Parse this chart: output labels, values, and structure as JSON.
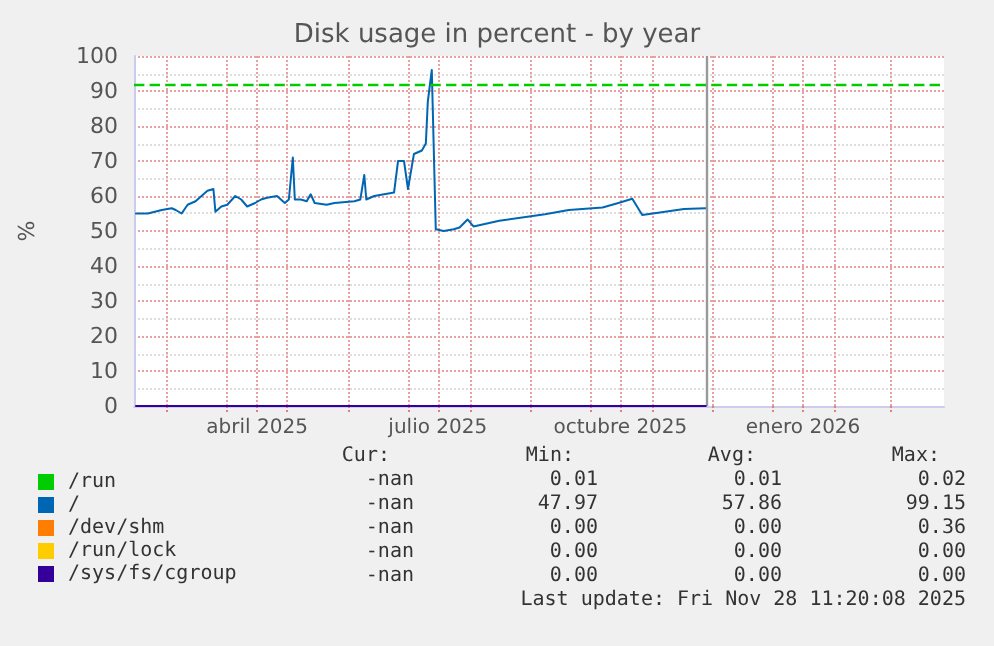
{
  "chart_data": {
    "type": "line",
    "title": "Disk usage in percent - by year",
    "ylabel": "%",
    "xlim": [
      "2025-02-13",
      "2026-03-28"
    ],
    "xticks": [
      {
        "value": "2025-03-01",
        "label": null
      },
      {
        "value": "2025-04-01",
        "label": null
      },
      {
        "value": "2025-04-16",
        "label": "abril 2025"
      },
      {
        "value": "2025-05-01",
        "label": null
      },
      {
        "value": "2025-06-01",
        "label": null
      },
      {
        "value": "2025-07-01",
        "label": null
      },
      {
        "value": "2025-07-16",
        "label": "julio 2025"
      },
      {
        "value": "2025-08-01",
        "label": null
      },
      {
        "value": "2025-09-01",
        "label": null
      },
      {
        "value": "2025-10-01",
        "label": null
      },
      {
        "value": "2025-10-16",
        "label": "octubre 2025"
      },
      {
        "value": "2025-11-01",
        "label": null
      },
      {
        "value": "2025-12-01",
        "label": null
      },
      {
        "value": "2026-01-01",
        "label": null
      },
      {
        "value": "2026-01-16",
        "label": "enero 2026"
      },
      {
        "value": "2026-02-01",
        "label": null
      },
      {
        "value": "2026-03-01",
        "label": null
      }
    ],
    "ylim": [
      0,
      100
    ],
    "yticks": [
      0,
      10,
      20,
      30,
      40,
      50,
      60,
      70,
      80,
      90,
      100
    ],
    "grid": true,
    "legend": "bottom left",
    "marker": "none",
    "line_style": "solid",
    "ref_lines": [
      {
        "axis": "y",
        "value": 92,
        "color": "#00cc00",
        "line_style": "dashed"
      },
      {
        "axis": "x",
        "value": "2025-11-28",
        "color": "#999999",
        "line_style": "solid"
      }
    ],
    "series": [
      {
        "name": "/run",
        "color": "#00cc00"
      },
      {
        "name": "/",
        "color": "#0066b3",
        "x": [
          "2025-02-14",
          "2025-02-20",
          "2025-02-27",
          "2025-03-04",
          "2025-03-06",
          "2025-03-09",
          "2025-03-12",
          "2025-03-16",
          "2025-03-19",
          "2025-03-22",
          "2025-03-25",
          "2025-03-26",
          "2025-03-29",
          "2025-04-01",
          "2025-04-05",
          "2025-04-08",
          "2025-04-11",
          "2025-04-15",
          "2025-04-18",
          "2025-04-21",
          "2025-04-26",
          "2025-04-30",
          "2025-05-02",
          "2025-05-04",
          "2025-05-05",
          "2025-05-08",
          "2025-05-11",
          "2025-05-13",
          "2025-05-15",
          "2025-05-21",
          "2025-05-25",
          "2025-06-04",
          "2025-06-07",
          "2025-06-09",
          "2025-06-10",
          "2025-06-14",
          "2025-06-19",
          "2025-06-24",
          "2025-06-26",
          "2025-06-29",
          "2025-07-01",
          "2025-07-04",
          "2025-07-08",
          "2025-07-10",
          "2025-07-11",
          "2025-07-13",
          "2025-07-15",
          "2025-07-19",
          "2025-07-24",
          "2025-07-27",
          "2025-07-31",
          "2025-08-03",
          "2025-08-16",
          "2025-09-08",
          "2025-09-20",
          "2025-10-07",
          "2025-10-15",
          "2025-10-22",
          "2025-10-27",
          "2025-11-04",
          "2025-11-17",
          "2025-11-28"
        ],
        "values": [
          55,
          55,
          56,
          56.5,
          56,
          55,
          57.5,
          58.5,
          60,
          61.5,
          62,
          55.5,
          57,
          57.5,
          60,
          59,
          57,
          58,
          59,
          59.5,
          60,
          58,
          59,
          71,
          59,
          59,
          58.5,
          60.5,
          58,
          57.5,
          58,
          58.5,
          59,
          66,
          59,
          60,
          60.5,
          61,
          70,
          70,
          62,
          72,
          73,
          75,
          87,
          96,
          50.5,
          50,
          50.5,
          51,
          53.3,
          51.3,
          52.9,
          54.8,
          56,
          56.7,
          58,
          59.2,
          54.6,
          55.2,
          56.3,
          56.5
        ]
      },
      {
        "name": "/dev/shm",
        "color": "#ff7d00"
      },
      {
        "name": "/run/lock",
        "color": "#ffcc00"
      },
      {
        "name": "/sys/fs/cgroup",
        "color": "#330099",
        "x": [
          "2025-02-14",
          "2025-11-28"
        ],
        "values": [
          0,
          0
        ]
      }
    ],
    "annotations": [
      "Cur:",
      "Min:",
      "Avg:",
      "Max:",
      "-nan",
      "0.01",
      "0.01",
      "0.02",
      "-nan",
      "47.97",
      "57.86",
      "99.15",
      "-nan",
      "0.00",
      "0.00",
      "0.36",
      "-nan",
      "0.00",
      "0.00",
      "0.00",
      "-nan",
      "0.00",
      "0.00",
      "0.00",
      "Last update: Fri Nov 28 11:20:08 2025"
    ]
  }
}
